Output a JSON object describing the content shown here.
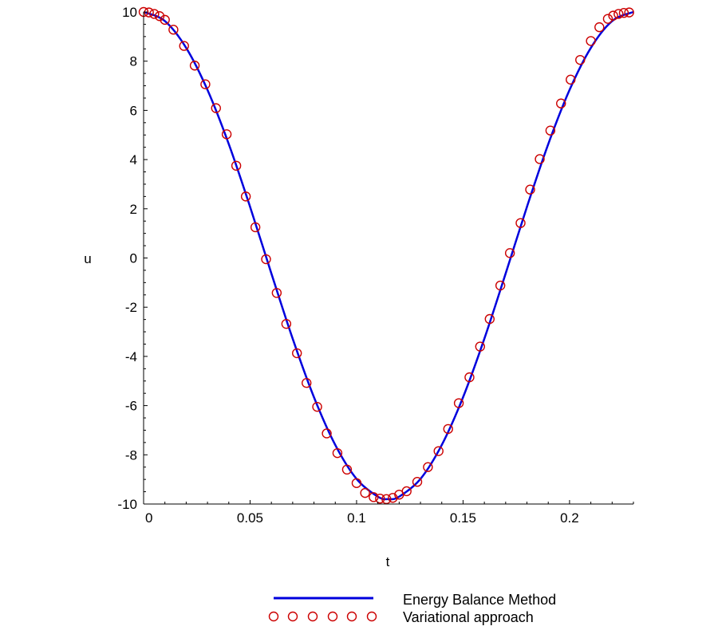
{
  "chart_data": {
    "type": "line",
    "title": "",
    "xlabel": "t",
    "ylabel": "u",
    "xlim": [
      0,
      0.23
    ],
    "ylim": [
      -10,
      10
    ],
    "grid": false,
    "legend_position": "bottom",
    "xticks": [
      {
        "value": 0,
        "label": "0"
      },
      {
        "value": 0.05,
        "label": "0.05"
      },
      {
        "value": 0.1,
        "label": "0.1"
      },
      {
        "value": 0.15,
        "label": "0.15"
      },
      {
        "value": 0.2,
        "label": "0.2"
      }
    ],
    "yticks": [
      {
        "value": 10,
        "label": "10"
      },
      {
        "value": 8,
        "label": "8"
      },
      {
        "value": 6,
        "label": "6"
      },
      {
        "value": 4,
        "label": "4"
      },
      {
        "value": 2,
        "label": "2"
      },
      {
        "value": 0,
        "label": "0"
      },
      {
        "value": -2,
        "label": "-2"
      },
      {
        "value": -4,
        "label": "-4"
      },
      {
        "value": -6,
        "label": "-6"
      },
      {
        "value": -8,
        "label": "-8"
      },
      {
        "value": -10,
        "label": "-10"
      }
    ],
    "series": [
      {
        "name": "Energy Balance Method",
        "style": "line",
        "color": "#0000dd",
        "x": [
          0,
          0.01,
          0.02,
          0.03,
          0.04,
          0.05,
          0.06,
          0.07,
          0.08,
          0.09,
          0.1,
          0.11,
          0.115,
          0.12,
          0.13,
          0.14,
          0.15,
          0.16,
          0.17,
          0.18,
          0.19,
          0.2,
          0.21,
          0.22,
          0.23
        ],
        "y": [
          10,
          9.63,
          8.54,
          6.83,
          4.63,
          2.08,
          -0.63,
          -3.28,
          -5.66,
          -7.6,
          -8.98,
          -9.7,
          -9.8,
          -9.7,
          -8.98,
          -7.6,
          -5.66,
          -3.28,
          -0.63,
          2.08,
          4.63,
          6.83,
          8.54,
          9.63,
          10
        ]
      },
      {
        "name": "Variational approach",
        "style": "markers",
        "marker": "circle",
        "color": "#cc0000",
        "x": [
          0,
          0.0025,
          0.005,
          0.0075,
          0.01,
          0.014,
          0.019,
          0.024,
          0.029,
          0.034,
          0.039,
          0.0435,
          0.048,
          0.0525,
          0.0575,
          0.0625,
          0.067,
          0.072,
          0.0765,
          0.0815,
          0.086,
          0.091,
          0.0955,
          0.1,
          0.104,
          0.108,
          0.111,
          0.114,
          0.117,
          0.12,
          0.1235,
          0.1285,
          0.1335,
          0.1385,
          0.143,
          0.148,
          0.153,
          0.158,
          0.1625,
          0.1675,
          0.172,
          0.177,
          0.1815,
          0.186,
          0.191,
          0.196,
          0.2005,
          0.205,
          0.21,
          0.214,
          0.218,
          0.2205,
          0.223,
          0.2255,
          0.228
        ],
        "y": [
          10,
          9.98,
          9.92,
          9.83,
          9.68,
          9.28,
          8.62,
          7.82,
          7.06,
          6.09,
          5.03,
          3.75,
          2.5,
          1.25,
          -0.05,
          -1.42,
          -2.68,
          -3.87,
          -5.08,
          -6.05,
          -7.13,
          -7.93,
          -8.6,
          -9.15,
          -9.55,
          -9.72,
          -9.78,
          -9.8,
          -9.75,
          -9.62,
          -9.48,
          -9.1,
          -8.5,
          -7.85,
          -6.95,
          -5.9,
          -4.85,
          -3.6,
          -2.48,
          -1.12,
          0.2,
          1.42,
          2.78,
          4.02,
          5.18,
          6.28,
          7.25,
          8.05,
          8.82,
          9.38,
          9.72,
          9.85,
          9.92,
          9.96,
          9.98
        ]
      }
    ]
  }
}
